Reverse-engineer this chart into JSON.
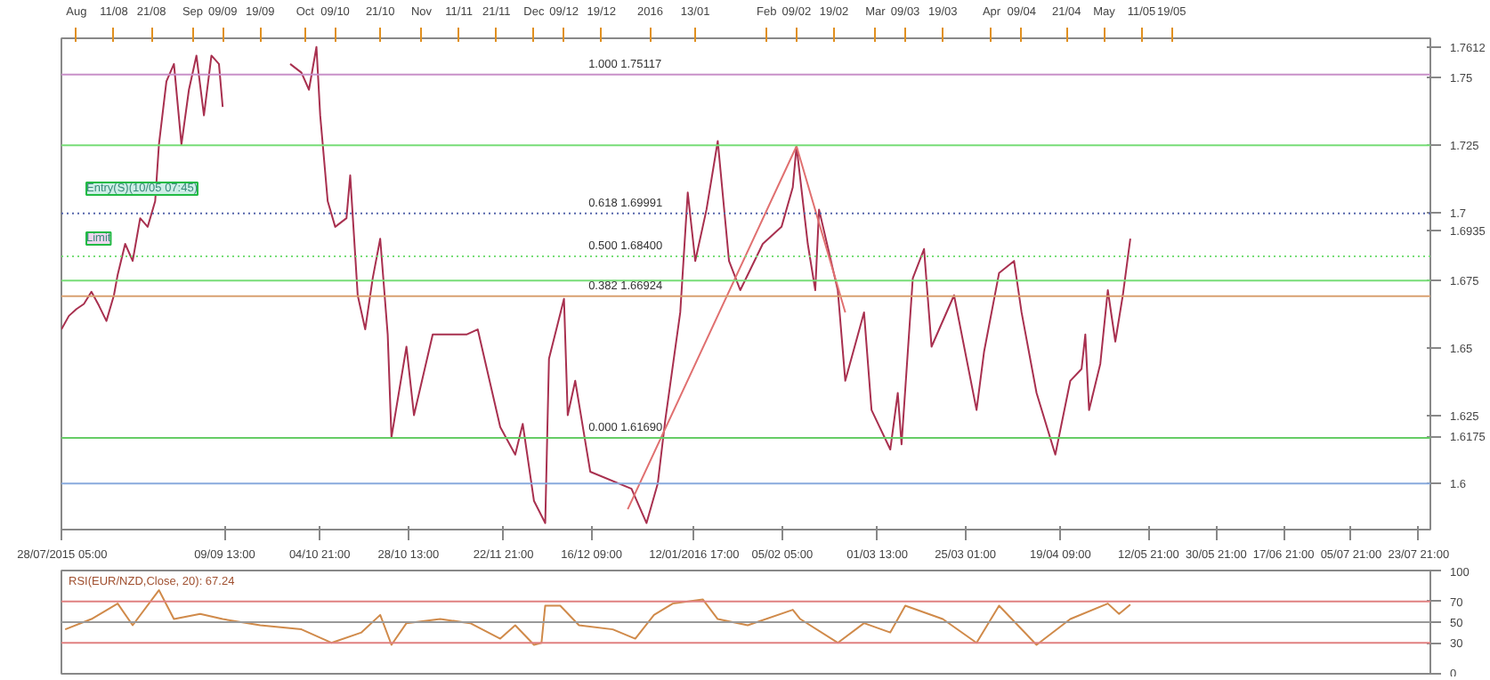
{
  "chart_data": [
    {
      "type": "line",
      "xlim": [
        "2015-07-28",
        "2016-07-27"
      ],
      "ylim": [
        1.583,
        1.7646
      ],
      "xticks": [
        {
          "value": "2015-07-28T05:00",
          "label": "28/07/2015 05:00"
        },
        {
          "value": "2015-09-09T13:00",
          "label": "09/09 13:00"
        },
        {
          "value": "2015-10-04T21:00",
          "label": "04/10 21:00"
        },
        {
          "value": "2015-10-28T13:00",
          "label": "28/10 13:00"
        },
        {
          "value": "2015-11-22T21:00",
          "label": "22/11 21:00"
        },
        {
          "value": "2015-12-16T09:00",
          "label": "16/12 09:00"
        },
        {
          "value": "2016-01-12T17:00",
          "label": "12/01/2016 17:00"
        },
        {
          "value": "2016-02-05T05:00",
          "label": "05/02 05:00"
        },
        {
          "value": "2016-03-01T13:00",
          "label": "01/03 13:00"
        },
        {
          "value": "2016-03-25T01:00",
          "label": "25/03 01:00"
        },
        {
          "value": "2016-04-19T09:00",
          "label": "19/04 09:00"
        },
        {
          "value": "2016-05-12T21:00",
          "label": "12/05 21:00"
        },
        {
          "value": "2016-05-30T21:00",
          "label": "30/05 21:00"
        },
        {
          "value": "2016-06-17T21:00",
          "label": "17/06 21:00"
        },
        {
          "value": "2016-07-05T21:00",
          "label": "05/07 21:00"
        },
        {
          "value": "2016-07-23T21:00",
          "label": "23/07 21:00"
        }
      ],
      "x2lim": [
        "2015-07-28",
        "2016-07-27"
      ],
      "x2ticks": [
        {
          "value": "2015-08-01",
          "label": "Aug"
        },
        {
          "value": "2015-08-11",
          "label": "11/08"
        },
        {
          "value": "2015-08-21",
          "label": "21/08"
        },
        {
          "value": "2015-09-01",
          "label": "Sep"
        },
        {
          "value": "2015-09-09",
          "label": "09/09"
        },
        {
          "value": "2015-09-19",
          "label": "19/09"
        },
        {
          "value": "2015-10-01",
          "label": "Oct"
        },
        {
          "value": "2015-10-09",
          "label": "09/10"
        },
        {
          "value": "2015-10-21",
          "label": "21/10"
        },
        {
          "value": "2015-11-01",
          "label": "Nov"
        },
        {
          "value": "2015-11-11",
          "label": "11/11"
        },
        {
          "value": "2015-11-21",
          "label": "21/11"
        },
        {
          "value": "2015-12-01",
          "label": "Dec"
        },
        {
          "value": "2015-12-09",
          "label": "09/12"
        },
        {
          "value": "2015-12-19",
          "label": "19/12"
        },
        {
          "value": "2016-01-01",
          "label": "2016"
        },
        {
          "value": "2016-01-13",
          "label": "13/01"
        },
        {
          "value": "2016-02-01",
          "label": "Feb"
        },
        {
          "value": "2016-02-09",
          "label": "09/02"
        },
        {
          "value": "2016-02-19",
          "label": "19/02"
        },
        {
          "value": "2016-03-01",
          "label": "Mar"
        },
        {
          "value": "2016-03-09",
          "label": "09/03"
        },
        {
          "value": "2016-03-19",
          "label": "19/03"
        },
        {
          "value": "2016-04-01",
          "label": "Apr"
        },
        {
          "value": "2016-04-09",
          "label": "09/04"
        },
        {
          "value": "2016-04-21",
          "label": "21/04"
        },
        {
          "value": "2016-05-01",
          "label": "May"
        },
        {
          "value": "2016-05-11",
          "label": "11/05"
        },
        {
          "value": "2016-05-19",
          "label": "19/05"
        }
      ],
      "yticks": [
        1.7612,
        1.75,
        1.725,
        1.7,
        1.6935,
        1.675,
        1.65,
        1.625,
        1.6175,
        1.6
      ],
      "series": [
        {
          "color": "#a8304f",
          "x": [
            "2015-07-28",
            "2015-07-30",
            "2015-08-01",
            "2015-08-03",
            "2015-08-05",
            "2015-08-07",
            "2015-08-09",
            "2015-08-11",
            "2015-08-12",
            "2015-08-14",
            "2015-08-16",
            "2015-08-18",
            "2015-08-20",
            "2015-08-22",
            "2015-08-23",
            "2015-08-25",
            "2015-08-27",
            "2015-08-29",
            "2015-08-31",
            "2015-09-02",
            "2015-09-04",
            "2015-09-06",
            "2015-09-08",
            "2015-09-09",
            "2015-09-11",
            "2015-09-24",
            "2015-09-27",
            "2015-09-30",
            "2015-10-02",
            "2015-10-04",
            "2015-10-05",
            "2015-10-07",
            "2015-10-09",
            "2015-10-12",
            "2015-10-13",
            "2015-10-15",
            "2015-10-17",
            "2015-10-19",
            "2015-10-21",
            "2015-10-23",
            "2015-10-24",
            "2015-10-28",
            "2015-10-30",
            "2015-11-04",
            "2015-11-13",
            "2015-11-16",
            "2015-11-22",
            "2015-11-26",
            "2015-11-28",
            "2015-12-01",
            "2015-12-04",
            "2015-12-05",
            "2015-12-09",
            "2015-12-10",
            "2015-12-12",
            "2015-12-16",
            "2015-12-27",
            "2015-12-31",
            "2016-01-03",
            "2016-01-05",
            "2016-01-09",
            "2016-01-11",
            "2016-01-13",
            "2016-01-16",
            "2016-01-19",
            "2016-01-22",
            "2016-01-25",
            "2016-01-31",
            "2016-02-05",
            "2016-02-08",
            "2016-02-09",
            "2016-02-12",
            "2016-02-14",
            "2016-02-15",
            "2016-02-20",
            "2016-02-22",
            "2016-02-27",
            "2016-02-29",
            "2016-03-05",
            "2016-03-07",
            "2016-03-08",
            "2016-03-11",
            "2016-03-14",
            "2016-03-16",
            "2016-03-22",
            "2016-03-28",
            "2016-03-30",
            "2016-04-03",
            "2016-04-07",
            "2016-04-09",
            "2016-04-13",
            "2016-04-18",
            "2016-04-22",
            "2016-04-25",
            "2016-04-26",
            "2016-04-27",
            "2016-04-30",
            "2016-05-02",
            "2016-05-04",
            "2016-05-06",
            "2016-05-08"
          ],
          "values": [
            1.657,
            1.662,
            1.6645,
            1.6664,
            1.6709,
            1.6658,
            1.6601,
            1.6696,
            1.6772,
            1.6886,
            1.6823,
            1.6981,
            1.6949,
            1.7044,
            1.7253,
            1.7487,
            1.7551,
            1.7253,
            1.7456,
            1.7582,
            1.7361,
            1.7582,
            1.7551,
            1.7392,
            null,
            null,
            1.7551,
            1.7519,
            1.7456,
            1.7614,
            1.7361,
            1.7044,
            1.6949,
            1.6981,
            1.7139,
            1.6696,
            1.657,
            1.6759,
            1.6905,
            1.6551,
            1.6171,
            1.6506,
            1.6253,
            1.6551,
            1.6551,
            1.657,
            1.6209,
            1.6107,
            1.6221,
            1.5936,
            1.5854,
            1.6462,
            1.6683,
            1.6253,
            1.638,
            1.6044,
            1.5981,
            1.5854,
            1.6,
            1.6234,
            1.6633,
            1.7076,
            1.6823,
            1.7013,
            1.7266,
            1.6823,
            1.6715,
            1.6886,
            1.6949,
            1.7095,
            1.7247,
            1.6886,
            1.6715,
            1.7013,
            1.6715,
            1.638,
            1.6633,
            1.6272,
            1.6126,
            1.6335,
            1.6145,
            1.6759,
            1.6867,
            1.6506,
            1.6696,
            1.6272,
            1.6487,
            1.6778,
            1.6823,
            1.6633,
            1.6335,
            1.6107,
            1.638,
            1.6424,
            1.6551,
            1.6272,
            1.6443,
            1.6715,
            1.6525,
            1.6696,
            1.6905
          ]
        },
        {
          "color": "#e07070",
          "x": [
            "2015-12-26",
            "2016-02-09",
            "2016-02-22"
          ],
          "values": [
            1.5905,
            1.7247,
            1.6633
          ]
        }
      ],
      "ref_lines": [
        {
          "axis": "y",
          "value": 1.75117,
          "label": "1.000 1.75117",
          "color": "#c890c8"
        },
        {
          "axis": "y",
          "value": 1.725,
          "color": "#77dd77"
        },
        {
          "axis": "y",
          "value": 1.69991,
          "label": "0.618 1.69991",
          "color": "#5566aa",
          "line_style": "dotted"
        },
        {
          "axis": "y",
          "value": 1.684,
          "label": "0.500 1.68400",
          "color": "#77dd77",
          "line_style": "dotted"
        },
        {
          "axis": "y",
          "value": 1.675,
          "color": "#77dd77"
        },
        {
          "axis": "y",
          "value": 1.66924,
          "label": "0.382 1.66924",
          "color": "#d9a070"
        },
        {
          "axis": "y",
          "value": 1.6169,
          "label": "0.000 1.61690",
          "color": "#66cc66"
        },
        {
          "axis": "y",
          "value": 1.6,
          "color": "#88aadd"
        }
      ],
      "annotations": [
        "Entry(S)(10/05 07:45)",
        "Limit"
      ],
      "grid": false
    },
    {
      "type": "line",
      "title": "RSI(EUR/NZD,Close, 20): 67.24",
      "xlim": [
        "2015-07-28",
        "2016-07-27"
      ],
      "ylim": [
        0,
        100
      ],
      "yticks": [
        0,
        30,
        50,
        70,
        100
      ],
      "tick_labels": "y",
      "series": [
        {
          "color": "#d08a4a",
          "x": [
            "2015-07-29",
            "2015-08-05",
            "2015-08-12",
            "2015-08-16",
            "2015-08-23",
            "2015-08-27",
            "2015-09-03",
            "2015-09-09",
            "2015-09-19",
            "2015-09-30",
            "2015-10-08",
            "2015-10-16",
            "2015-10-21",
            "2015-10-24",
            "2015-10-28",
            "2015-11-06",
            "2015-11-14",
            "2015-11-22",
            "2015-11-26",
            "2015-12-01",
            "2015-12-03",
            "2015-12-04",
            "2015-12-08",
            "2015-12-13",
            "2015-12-22",
            "2015-12-28",
            "2016-01-02",
            "2016-01-07",
            "2016-01-15",
            "2016-01-19",
            "2016-01-27",
            "2016-02-08",
            "2016-02-10",
            "2016-02-20",
            "2016-02-27",
            "2016-03-05",
            "2016-03-09",
            "2016-03-19",
            "2016-03-28",
            "2016-04-03",
            "2016-04-13",
            "2016-04-22",
            "2016-05-02",
            "2016-05-05",
            "2016-05-08"
          ],
          "values": [
            43,
            53,
            68,
            47,
            81,
            53,
            58,
            53,
            47,
            43,
            30,
            40,
            57,
            28,
            49,
            53,
            49,
            34,
            47,
            28,
            30,
            66,
            66,
            47,
            43,
            34,
            57,
            68,
            72,
            53,
            47,
            62,
            53,
            30,
            49,
            40,
            66,
            53,
            30,
            66,
            28,
            53,
            68,
            58,
            67
          ]
        }
      ],
      "ref_lines": [
        {
          "axis": "y",
          "value": 70,
          "color": "#e08080"
        },
        {
          "axis": "y",
          "value": 50,
          "color": "#999999"
        },
        {
          "axis": "y",
          "value": 30,
          "color": "#e08080"
        }
      ],
      "grid": false
    }
  ]
}
